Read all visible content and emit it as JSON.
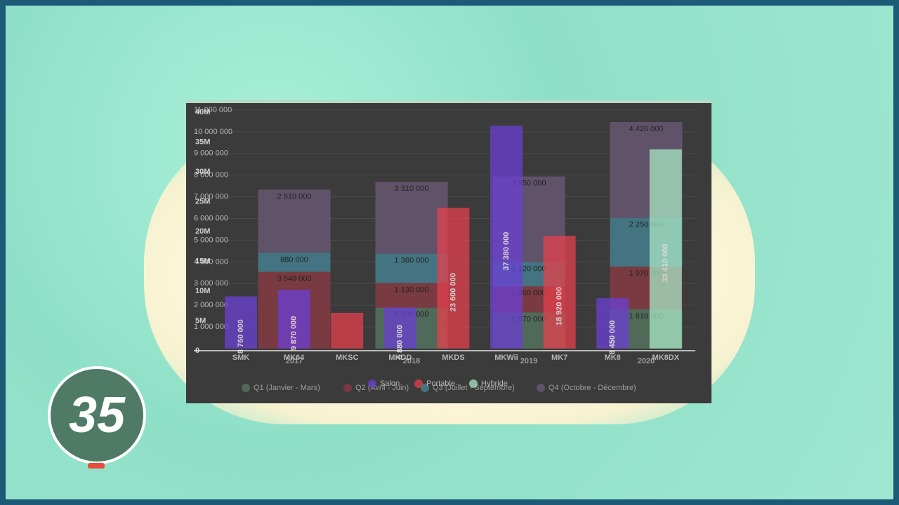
{
  "badge": "35",
  "chart_data": [
    {
      "type": "bar",
      "stacked": true,
      "categories": [
        "2017",
        "2018",
        "2019",
        "2020"
      ],
      "series": [
        {
          "name": "Q1 (Janvier - Mars)",
          "color": "#5f8a6e",
          "values": [
            0,
            1890000,
            1670000,
            1810000
          ],
          "value_labels": [
            null,
            "1 890 000",
            "1 670 000",
            "1 810 000"
          ]
        },
        {
          "name": "Q2 (Avril - Juin)",
          "color": "#a33a45",
          "values": [
            3540000,
            1130000,
            1200000,
            1970000
          ],
          "value_labels": [
            "3 540 000",
            "1 130 000",
            "1 200 000",
            "1 970 000"
          ]
        },
        {
          "name": "Q3 (Juillet - Septembre)",
          "color": "#4a9ab0",
          "values": [
            880000,
            1360000,
            1120000,
            2250000
          ],
          "value_labels": [
            "880 000",
            "1 360 000",
            "1 120 000",
            "2 250 000"
          ]
        },
        {
          "name": "Q4 (Octobre - Décembre)",
          "color": "#7a6488",
          "values": [
            2910000,
            3310000,
            3950000,
            4420000
          ],
          "value_labels": [
            "2 910 000",
            "3 310 000",
            "3 950 000",
            "4 420 000"
          ]
        }
      ],
      "ylim": [
        0,
        11000000
      ],
      "yticks": [
        {
          "value": 1000000,
          "label": "1 000 000"
        },
        {
          "value": 2000000,
          "label": "2 000 000"
        },
        {
          "value": 3000000,
          "label": "3 000 000"
        },
        {
          "value": 4000000,
          "label": "4 000 000"
        },
        {
          "value": 5000000,
          "label": "5 000 000"
        },
        {
          "value": 6000000,
          "label": "6 000 000"
        },
        {
          "value": 7000000,
          "label": "7 000 000"
        },
        {
          "value": 8000000,
          "label": "8 000 000"
        },
        {
          "value": 9000000,
          "label": "9 000 000"
        },
        {
          "value": 10000000,
          "label": "10 000 000"
        },
        {
          "value": 11000000,
          "label": "11 000 000"
        }
      ],
      "grid": true
    },
    {
      "type": "bar",
      "stacked": false,
      "categories": [
        "SMK",
        "MK64",
        "MKSC",
        "MKDD",
        "MKDS",
        "MKWii",
        "MK7",
        "MK8",
        "MK8DX"
      ],
      "series": [
        {
          "name": "Salon",
          "color": "#6b3fd4",
          "values": [
            8760000,
            9870000,
            null,
            6880000,
            null,
            37380000,
            null,
            8450000,
            null
          ],
          "value_labels": [
            "8 760 000",
            "9 870 000",
            null,
            "6 880 000",
            null,
            "37 380 000",
            null,
            "8 450 000",
            null
          ]
        },
        {
          "name": "Portable",
          "color": "#e5404c",
          "values": [
            null,
            null,
            6000000,
            null,
            23600000,
            null,
            18920000,
            null,
            null
          ],
          "value_labels": [
            null,
            null,
            null,
            null,
            "23 600 000",
            null,
            "18 920 000",
            null,
            null
          ]
        },
        {
          "name": "Hybride",
          "color": "#a8e6c4",
          "values": [
            null,
            null,
            null,
            null,
            null,
            null,
            null,
            null,
            33410000
          ],
          "value_labels": [
            null,
            null,
            null,
            null,
            null,
            null,
            null,
            null,
            "33 410 000"
          ]
        }
      ],
      "ylim": [
        0,
        40000000
      ],
      "yticks": [
        0,
        {
          "value": 5000000,
          "label": "5M"
        },
        {
          "value": 10000000,
          "label": "10M"
        },
        {
          "value": 15000000,
          "label": "15M"
        },
        {
          "value": 20000000,
          "label": "20M"
        },
        {
          "value": 25000000,
          "label": "25M"
        },
        {
          "value": 30000000,
          "label": "30M"
        },
        {
          "value": 35000000,
          "label": "35M"
        },
        {
          "value": 40000000,
          "label": "40M"
        }
      ],
      "grid": false
    }
  ]
}
